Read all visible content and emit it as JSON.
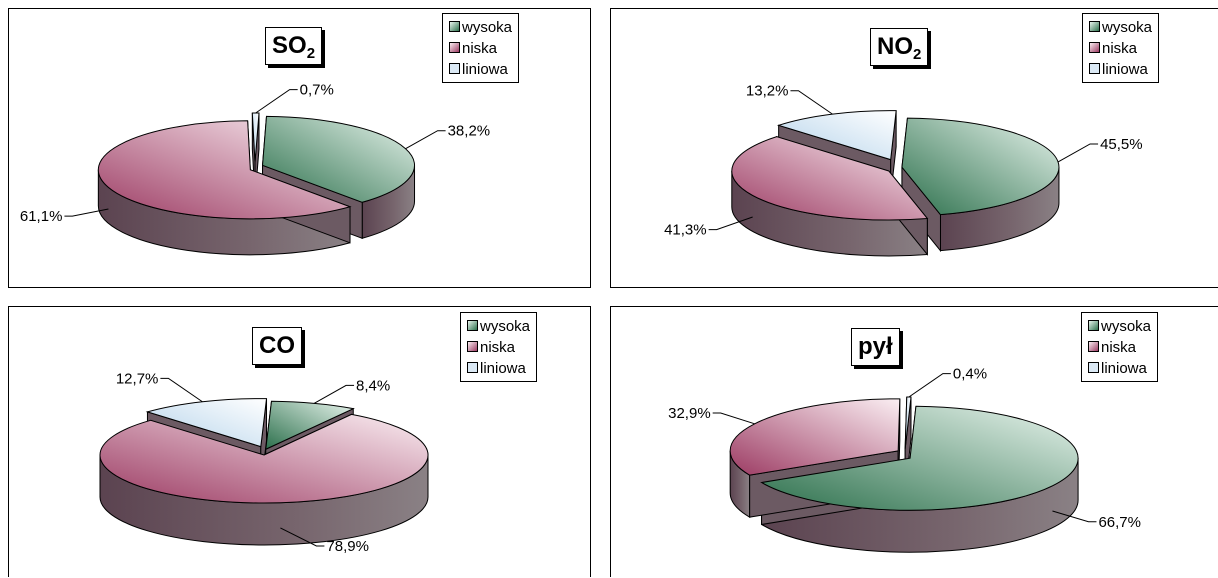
{
  "colors": {
    "wysoka": [
      "#e9f5ee",
      "#2c704c"
    ],
    "niska": [
      "#fbeff3",
      "#9c3b63"
    ],
    "liniowa": [
      "#ffffff",
      "#b3d2ea"
    ]
  },
  "legend": [
    "wysoka",
    "niska",
    "liniowa"
  ],
  "chart_data": [
    {
      "type": "pie",
      "title": "SO",
      "title_sub": "2",
      "categories": [
        "wysoka",
        "niska",
        "liniowa"
      ],
      "values": [
        38.2,
        61.1,
        0.7
      ],
      "labels": [
        "38,2%",
        "61,1%",
        "0,7%"
      ],
      "legend": "top-right"
    },
    {
      "type": "pie",
      "title": "NO",
      "title_sub": "2",
      "categories": [
        "wysoka",
        "niska",
        "liniowa"
      ],
      "values": [
        45.5,
        41.3,
        13.2
      ],
      "labels": [
        "45,5%",
        "41,3%",
        "13,2%"
      ],
      "legend": "top-right"
    },
    {
      "type": "pie",
      "title": "CO",
      "title_sub": "",
      "categories": [
        "wysoka",
        "niska",
        "liniowa"
      ],
      "values": [
        8.4,
        78.9,
        12.7
      ],
      "labels": [
        "8,4%",
        "78,9%",
        "12,7%"
      ],
      "legend": "top-right"
    },
    {
      "type": "pie",
      "title": "pył",
      "title_sub": "",
      "categories": [
        "wysoka",
        "niska",
        "liniowa"
      ],
      "values": [
        66.7,
        32.9,
        0.4
      ],
      "labels": [
        "66,7%",
        "32,9%",
        "0,4%"
      ],
      "legend": "top-right"
    }
  ]
}
